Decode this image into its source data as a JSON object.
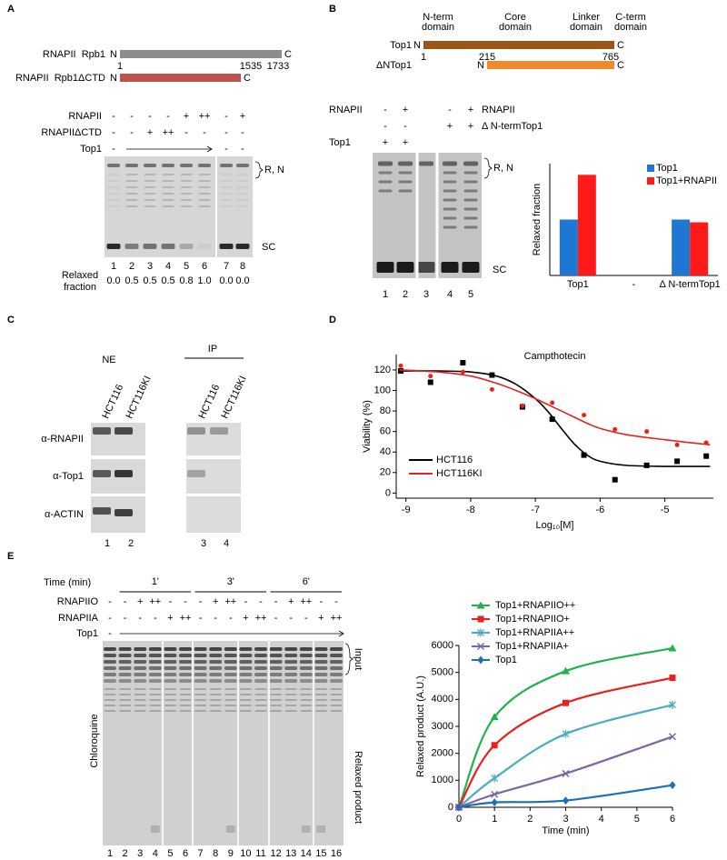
{
  "panels": {
    "A": {
      "label": "A",
      "constructs": [
        {
          "name": "RNAPII  Rpb1",
          "color": "#8c8c8c",
          "n": "N",
          "c": "C",
          "positions": [
            1,
            1535,
            1733
          ]
        },
        {
          "name": "RNAPII  Rpb1ΔCTD",
          "color": "#c0504d",
          "n": "N",
          "c": "C"
        }
      ],
      "conditions": [
        {
          "name": "RNAPII",
          "color": "#8c8c8c",
          "signs": [
            "-",
            "-",
            "-",
            "-",
            "+",
            "++",
            "-",
            "+"
          ]
        },
        {
          "name": "RNAPIIΔCTD",
          "color": "#c0504d",
          "signs": [
            "-",
            "-",
            "+",
            "++",
            "-",
            "-",
            "-",
            "-"
          ]
        },
        {
          "name": "Top1",
          "color": "#000000",
          "signs": [
            "-",
            null,
            null,
            null,
            null,
            null,
            "-",
            "-"
          ]
        }
      ],
      "lanes": [
        1,
        2,
        3,
        4,
        5,
        6,
        7,
        8
      ],
      "fraction_label": [
        "Relaxed",
        "fraction"
      ],
      "fractions": [
        "0.0",
        "0.5",
        "0.5",
        "0.5",
        "0.8",
        "1.0",
        "0.0",
        "0.0"
      ],
      "bands": [
        "R, N",
        "SC"
      ]
    },
    "B": {
      "label": "B",
      "domains": [
        [
          "N-term",
          "domain"
        ],
        [
          "Core",
          "domain"
        ],
        [
          "Linker",
          "domain"
        ],
        [
          "C-term",
          "domain"
        ]
      ],
      "constructs": [
        {
          "name": "Top1",
          "color": "#9c5518",
          "n": "N",
          "c": "C",
          "positions": [
            1,
            215,
            765
          ]
        },
        {
          "name": "ΔNTop1",
          "color": "#f0892a",
          "n": "N",
          "c": "C"
        }
      ],
      "conditions": [
        {
          "left": "RNAPII",
          "right": "RNAPII",
          "color": "#000000",
          "signs": [
            "-",
            "+",
            null,
            "-",
            "+"
          ]
        },
        {
          "right": "Δ N-termTop1",
          "color": "#e07b22",
          "signs": [
            "-",
            "-",
            null,
            "+",
            "+"
          ]
        },
        {
          "left": "Top1",
          "color": "#e07b22",
          "signs": [
            "+",
            "+",
            null,
            null,
            null
          ]
        }
      ],
      "lanes": [
        1,
        2,
        3,
        4,
        5
      ],
      "bands": [
        "R, N",
        "SC"
      ]
    },
    "C": {
      "label": "C",
      "groups": [
        "NE",
        "IP"
      ],
      "columns": [
        "HCT116",
        "HCT116KI",
        "HCT116",
        "HCT116KI"
      ],
      "rows": [
        "α-RNAPII",
        "α-Top1",
        "α-ACTIN"
      ],
      "lanes": [
        1,
        2,
        3,
        4
      ]
    },
    "D": {
      "label": "D"
    },
    "E": {
      "label": "E",
      "time_label": "Time (min)",
      "times": [
        "1'",
        "3'",
        "6'"
      ],
      "conditions": [
        {
          "name": "RNAPIIO",
          "color": "#000000",
          "signs": [
            "-",
            "-",
            "+",
            "++",
            "-",
            "-",
            "-",
            "+",
            "++",
            "-",
            "-",
            "-",
            "+",
            "++",
            "-",
            "-"
          ]
        },
        {
          "name": "RNAPIIA",
          "color": "#000000",
          "signs": [
            "-",
            "-",
            "-",
            "-",
            "+",
            "++",
            "-",
            "-",
            "-",
            "+",
            "++",
            "-",
            "-",
            "-",
            "+",
            "++"
          ]
        },
        {
          "name": "Top1",
          "color": "#000000",
          "signs": [
            "-",
            null,
            null,
            null,
            null,
            null,
            null,
            null,
            null,
            null,
            null,
            null,
            null,
            null,
            null,
            null
          ]
        }
      ],
      "side_labels": {
        "left": "Chloroquine",
        "input": "Input",
        "product": "Relaxed product"
      },
      "lanes": [
        1,
        2,
        3,
        4,
        5,
        6,
        7,
        8,
        9,
        10,
        11,
        12,
        13,
        14,
        15,
        16
      ]
    }
  },
  "chart_data": [
    {
      "type": "bar",
      "ylabel": "Relaxed fraction",
      "categories": [
        "Top1",
        "-",
        "Δ N-termTop1"
      ],
      "category_colors": [
        "#e07b22",
        "#000000",
        "#e07b22"
      ],
      "ylim": [
        0,
        2
      ],
      "legend": "upper right",
      "series": [
        {
          "name": "Top1",
          "color": "#1f77d4",
          "values": [
            1,
            null,
            1
          ]
        },
        {
          "name": "Top1+RNAPII",
          "color": "#ff1a1a",
          "values": [
            1.8,
            null,
            0.95
          ]
        }
      ]
    },
    {
      "type": "scatter",
      "title": "Campthotecin",
      "xlabel": "Log₁₀[M]",
      "ylabel": "Viability (%)",
      "xlim": [
        -9.15,
        -4.25
      ],
      "ylim": [
        -5,
        135
      ],
      "xticks": [
        -9,
        -8,
        -7,
        -6,
        -5
      ],
      "yticks": [
        0,
        20,
        40,
        60,
        80,
        100,
        120
      ],
      "legend": "lower left",
      "series": [
        {
          "name": "HCT116",
          "color": "#000000",
          "marker": "square",
          "x": [
            -9.08,
            -8.62,
            -8.12,
            -7.67,
            -7.2,
            -6.74,
            -6.25,
            -5.77,
            -5.28,
            -4.81,
            -4.36
          ],
          "values": [
            119,
            108,
            127,
            115,
            84,
            72,
            37,
            13,
            27,
            31,
            36
          ],
          "fit": {
            "x": [
              -9.1,
              -8.5,
              -8,
              -7.6,
              -7.3,
              -7,
              -6.8,
              -6.6,
              -6.4,
              -6.2,
              -6,
              -5.6,
              -5,
              -4.3
            ],
            "values": [
              119,
              119,
              118,
              114,
              106,
              92,
              79,
              63,
              48,
              37,
              31,
              27,
              26,
              26
            ]
          }
        },
        {
          "name": "HCT116KI",
          "color": "#e8211c",
          "marker": "circle",
          "x": [
            -9.08,
            -8.62,
            -8.12,
            -7.67,
            -7.2,
            -6.74,
            -6.25,
            -5.77,
            -5.28,
            -4.81,
            -4.36
          ],
          "values": [
            124,
            114,
            118,
            101,
            85,
            88,
            76,
            62,
            60,
            47,
            49
          ],
          "fit": {
            "x": [
              -9.1,
              -8.5,
              -8,
              -7.6,
              -7.3,
              -7,
              -6.8,
              -6.6,
              -6.4,
              -6.2,
              -6,
              -5.6,
              -5,
              -4.3
            ],
            "values": [
              120,
              118,
              114,
              107,
              100,
              92,
              86,
              80,
              74,
              68,
              63,
              57,
              52,
              47
            ]
          }
        }
      ]
    },
    {
      "type": "line",
      "xlabel": "Time (min)",
      "ylabel": "Relaxed product (A.U.)",
      "x": [
        0,
        1,
        3,
        6
      ],
      "xlim": [
        0,
        6
      ],
      "ylim": [
        0,
        6000
      ],
      "xticks": [
        0,
        1,
        2,
        3,
        4,
        5,
        6
      ],
      "yticks": [
        0,
        1000,
        2000,
        3000,
        4000,
        5000,
        6000
      ],
      "legend": "upper left",
      "series": [
        {
          "name": "Top1+RNAPIIO++",
          "color": "#22b14c",
          "marker": "triangle",
          "values": [
            0,
            3350,
            5050,
            5900
          ]
        },
        {
          "name": "Top1+RNAPIIO+",
          "color": "#e8211c",
          "marker": "square",
          "values": [
            0,
            2300,
            3870,
            4800
          ]
        },
        {
          "name": "Top1+RNAPIIA++",
          "color": "#4bacc6",
          "marker": "asterisk",
          "values": [
            0,
            1080,
            2720,
            3800
          ]
        },
        {
          "name": "Top1+RNAPIIA+",
          "color": "#8064a2",
          "marker": "x",
          "values": [
            0,
            480,
            1250,
            2620
          ]
        },
        {
          "name": "Top1",
          "color": "#1f6fb5",
          "marker": "diamond",
          "values": [
            0,
            180,
            250,
            820
          ]
        }
      ]
    }
  ]
}
